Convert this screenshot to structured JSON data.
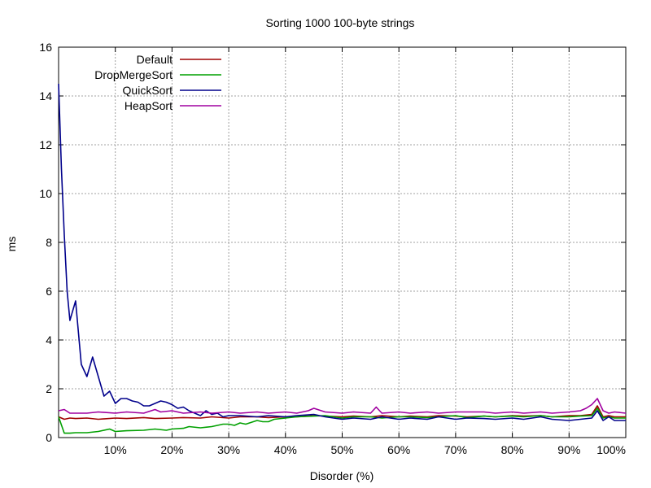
{
  "chart_data": {
    "type": "line",
    "title": "Sorting 1000 100-byte strings",
    "xlabel": "Disorder (%)",
    "ylabel": "ms",
    "xlim": [
      0,
      100
    ],
    "ylim": [
      0,
      16
    ],
    "grid": true,
    "legend_position": "top-left",
    "x_ticks": [
      10,
      20,
      30,
      40,
      50,
      60,
      70,
      80,
      90,
      100
    ],
    "x_tick_labels": [
      "10%",
      "20%",
      "30%",
      "40%",
      "50%",
      "60%",
      "70%",
      "80%",
      "90%",
      "100%"
    ],
    "y_ticks": [
      0,
      2,
      4,
      6,
      8,
      10,
      12,
      14,
      16
    ],
    "y_tick_labels": [
      "0",
      "2",
      "4",
      "6",
      "8",
      "10",
      "12",
      "14",
      "16"
    ],
    "series": [
      {
        "name": "Default",
        "color": "#a00000",
        "x": [
          0,
          1,
          2,
          3,
          5,
          7,
          10,
          12,
          15,
          17,
          20,
          22,
          25,
          27,
          30,
          32,
          35,
          37,
          40,
          42,
          45,
          47,
          50,
          52,
          55,
          57,
          60,
          62,
          65,
          67,
          70,
          72,
          75,
          77,
          80,
          82,
          85,
          87,
          90,
          92,
          94,
          95,
          96,
          97,
          98,
          100
        ],
        "y": [
          0.85,
          0.75,
          0.8,
          0.78,
          0.8,
          0.75,
          0.8,
          0.78,
          0.82,
          0.78,
          0.8,
          0.82,
          0.8,
          0.85,
          0.8,
          0.85,
          0.85,
          0.82,
          0.85,
          0.85,
          0.9,
          0.88,
          0.85,
          0.88,
          0.85,
          0.9,
          0.85,
          0.88,
          0.85,
          0.9,
          0.88,
          0.85,
          0.88,
          0.85,
          0.9,
          0.88,
          0.9,
          0.85,
          0.9,
          0.9,
          0.95,
          1.3,
          0.85,
          0.9,
          0.85,
          0.85
        ]
      },
      {
        "name": "DropMergeSort",
        "color": "#00a000",
        "x": [
          0,
          1,
          2,
          3,
          5,
          7,
          9,
          10,
          12,
          15,
          17,
          19,
          20,
          22,
          23,
          25,
          27,
          28,
          29,
          30,
          31,
          32,
          33,
          35,
          36,
          37,
          38,
          40,
          42,
          45,
          47,
          50,
          52,
          55,
          57,
          60,
          62,
          65,
          67,
          70,
          72,
          75,
          77,
          80,
          82,
          85,
          87,
          90,
          92,
          94,
          95,
          96,
          97,
          98,
          100
        ],
        "y": [
          0.85,
          0.18,
          0.18,
          0.2,
          0.2,
          0.25,
          0.35,
          0.25,
          0.28,
          0.3,
          0.35,
          0.3,
          0.35,
          0.38,
          0.45,
          0.4,
          0.45,
          0.5,
          0.55,
          0.55,
          0.5,
          0.6,
          0.55,
          0.7,
          0.65,
          0.65,
          0.75,
          0.8,
          0.85,
          0.88,
          0.9,
          0.8,
          0.85,
          0.85,
          0.8,
          0.85,
          0.85,
          0.82,
          0.85,
          0.9,
          0.82,
          0.88,
          0.85,
          0.88,
          0.85,
          0.9,
          0.85,
          0.85,
          0.88,
          0.9,
          1.2,
          0.8,
          0.85,
          0.8,
          0.8
        ]
      },
      {
        "name": "QuickSort",
        "color": "#00008b",
        "x": [
          0,
          0.5,
          1,
          1.5,
          2,
          3,
          4,
          5,
          6,
          7,
          8,
          9,
          10,
          11,
          12,
          13,
          14,
          15,
          16,
          17,
          18,
          19,
          20,
          21,
          22,
          23,
          24,
          25,
          26,
          27,
          28,
          29,
          30,
          32,
          35,
          37,
          40,
          42,
          45,
          47,
          50,
          52,
          55,
          57,
          60,
          62,
          65,
          67,
          70,
          72,
          75,
          77,
          80,
          82,
          85,
          87,
          90,
          92,
          94,
          95,
          96,
          97,
          98,
          100
        ],
        "y": [
          14.5,
          11.0,
          8.3,
          6.0,
          4.8,
          5.6,
          3.0,
          2.5,
          3.3,
          2.5,
          1.7,
          1.9,
          1.4,
          1.6,
          1.6,
          1.5,
          1.45,
          1.3,
          1.3,
          1.4,
          1.5,
          1.45,
          1.35,
          1.2,
          1.25,
          1.1,
          1.0,
          0.9,
          1.1,
          0.95,
          1.0,
          0.85,
          0.9,
          0.9,
          0.85,
          0.9,
          0.85,
          0.9,
          0.95,
          0.85,
          0.75,
          0.8,
          0.75,
          0.85,
          0.75,
          0.8,
          0.75,
          0.85,
          0.75,
          0.8,
          0.78,
          0.75,
          0.8,
          0.75,
          0.85,
          0.75,
          0.7,
          0.75,
          0.8,
          1.1,
          0.7,
          0.85,
          0.7,
          0.7
        ]
      },
      {
        "name": "HeapSort",
        "color": "#a000a0",
        "x": [
          0,
          1,
          2,
          3,
          5,
          7,
          10,
          12,
          15,
          17,
          18,
          20,
          22,
          25,
          27,
          30,
          32,
          35,
          37,
          40,
          42,
          44,
          45,
          47,
          50,
          52,
          55,
          56,
          57,
          60,
          62,
          65,
          67,
          70,
          72,
          75,
          77,
          80,
          82,
          85,
          87,
          90,
          92,
          93,
          94,
          95,
          96,
          97,
          98,
          100
        ],
        "y": [
          1.1,
          1.15,
          1.0,
          1.0,
          1.0,
          1.05,
          1.0,
          1.05,
          1.0,
          1.15,
          1.05,
          1.1,
          1.0,
          1.05,
          1.0,
          1.05,
          1.0,
          1.05,
          1.0,
          1.05,
          1.0,
          1.1,
          1.2,
          1.05,
          1.0,
          1.05,
          1.0,
          1.25,
          1.0,
          1.05,
          1.0,
          1.05,
          1.0,
          1.05,
          1.05,
          1.05,
          1.0,
          1.05,
          1.0,
          1.05,
          1.0,
          1.05,
          1.1,
          1.2,
          1.35,
          1.6,
          1.1,
          1.0,
          1.05,
          1.0
        ]
      }
    ]
  }
}
